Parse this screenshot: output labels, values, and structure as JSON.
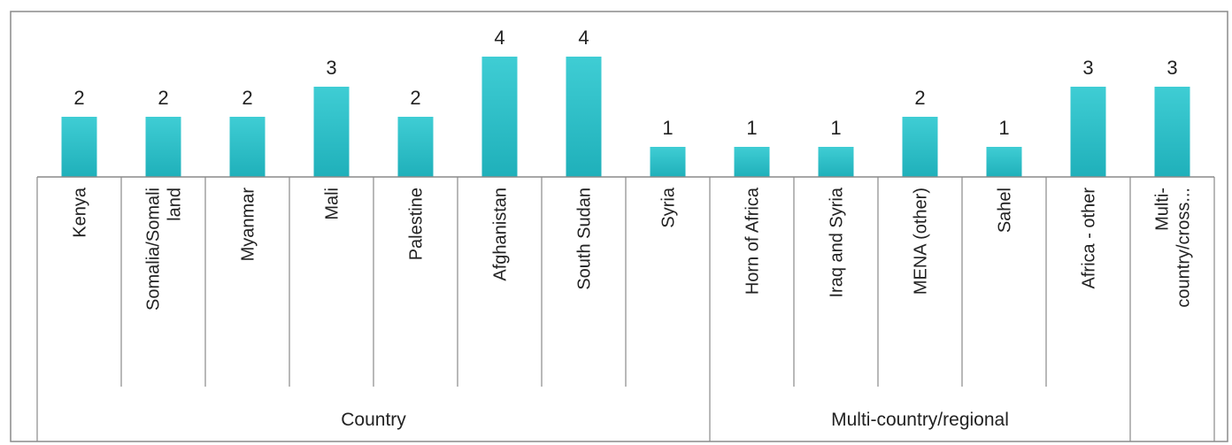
{
  "chart_data": {
    "type": "bar",
    "categories": [
      "Kenya",
      "Somalia/Somali land",
      "Myanmar",
      "Mali",
      "Palestine",
      "Afghanistan",
      "South Sudan",
      "Syria",
      "Horn of Africa",
      "Iraq and Syria",
      "MENA (other)",
      "Sahel",
      "Africa - other",
      "Multi-country/cross..."
    ],
    "category_lines": [
      [
        "Kenya"
      ],
      [
        "Somalia/Somali",
        "land"
      ],
      [
        "Myanmar"
      ],
      [
        "Mali"
      ],
      [
        "Palestine"
      ],
      [
        "Afghanistan"
      ],
      [
        "South Sudan"
      ],
      [
        "Syria"
      ],
      [
        "Horn of Africa"
      ],
      [
        "Iraq and Syria"
      ],
      [
        "MENA (other)"
      ],
      [
        "Sahel"
      ],
      [
        "Africa - other"
      ],
      [
        "Multi-",
        "country/cross..."
      ]
    ],
    "values": [
      2,
      2,
      2,
      3,
      2,
      4,
      4,
      1,
      1,
      1,
      2,
      1,
      3,
      3
    ],
    "data_labels": [
      "2",
      "2",
      "2",
      "3",
      "2",
      "4",
      "4",
      "1",
      "1",
      "1",
      "2",
      "1",
      "3",
      "3"
    ],
    "groups": [
      {
        "label": "Country",
        "count": 8
      },
      {
        "label": "Multi-country/regional",
        "count": 5
      },
      {
        "label": "",
        "count": 1
      }
    ],
    "ylim": [
      0,
      4
    ],
    "grid": false,
    "legend": "none",
    "bar_color": "#2cc0c9",
    "bar_color_dark": "#1aa8b2"
  }
}
